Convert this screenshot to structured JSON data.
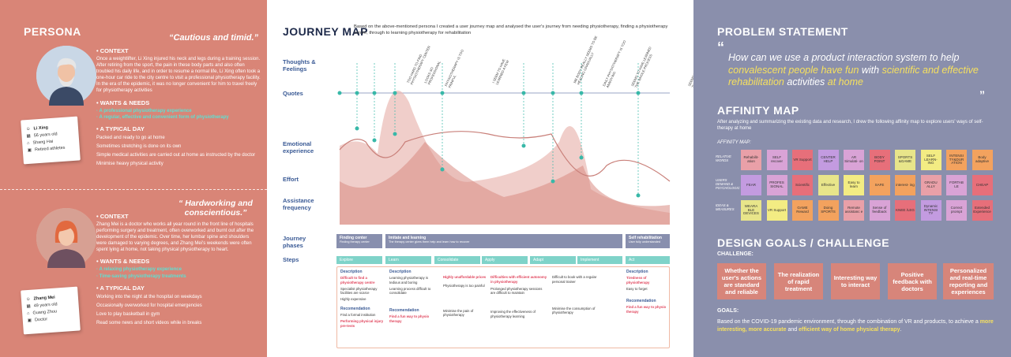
{
  "persona": {
    "title": "PERSONA",
    "p1": {
      "quote": "“Cautious and timid.”",
      "context_h": "CONTEXT",
      "context": "Once a weightlifter, Li Xing injured his neck and legs during a training session. After retiring from the sport, the pain in these body parts and also often troubled his daily life, and in order to resume a normal life, Li Xing often took a one-hour car ride to the city centre to visit a professional physiotherapy facility. In the era of the epidemic, it was no longer convenient for him to travel freely for physiotherapy activities",
      "wants_h": "WANTS & NEEDS",
      "wants": [
        "· A professional physiotherapy experience",
        "· A regular, effective and convenient form of physiotherapy"
      ],
      "day_h": "A TYPICAL DAY",
      "day": [
        "Packed and ready to go at home",
        "Sometimes stretching is done on its own",
        "Simple medical activities are carried out at home as instructed by the doctor",
        "Minimise heavy physical activity"
      ],
      "name": "Li Xing",
      "age": "56 years old",
      "city": "Shang Hai",
      "job": "Retired athletes"
    },
    "p2": {
      "quote": "“ Hardworking and conscientious.”",
      "context_h": "CONTEXT",
      "context": "Zhang Mei is a doctor who works all year round in the front line of hospitals performing surgery and treatment, often overworked and burnt out after the development of the epidemic. Over time, her lumbar spine and shoulders were damaged to varying degrees, and Zhang Mei's weekends were often spent lying at home, not taking physical physiotherapy to heart.",
      "wants_h": "WANTS & NEEDS",
      "wants": [
        "· A relaxing physiotherapy experience",
        "· Time-saving physiotherapy treatments"
      ],
      "day_h": "A TYPICAL DAY",
      "day": [
        "Working into the night at the hospital on weekdays",
        "Occasionally overworked for hospital emergencies",
        "Love to play basketball in gym",
        "Read some news and short videos while in breaks"
      ],
      "name": "Zhang Mei",
      "age": "49 years old",
      "city": "Guang Zhou",
      "job": "Doctor"
    }
  },
  "journey": {
    "title": "JOURNEY MAP",
    "intro": "Based on the above-mentioned persona I created a user journey map and analysed the user's journey from needing physiotherapy, finding a physiotherapy centre, through to learning physiotherapy for rehabilitation",
    "rows": [
      "Thoughts & Feelings",
      "Quotes",
      "Emotional experience",
      "Effort",
      "Assistance frequency",
      "Journey phases",
      "Steps"
    ],
    "thoughts": [
      "TOO HARD TO FIND PHYSIOTHERAPY CENTER",
      "LOOKS SO PROFESSIONAL",
      "PHYSIOTHERAPY IS TOO PAINFUL",
      "I SEEM TO HAVE LEARNED A FEW",
      "ME BODY REALLY SEEMS TO BE HEALING GRADUALLY",
      "DAILY PHYSIOTHERAPY IS TOO ANNOYING",
      "SEEMS TO HAVE LEARNED THE WHOLE PROCESS",
      "SEEMS TO HAVE LEARNED THE WHOLE PROCESS"
    ],
    "phases": [
      {
        "title": "Finding center",
        "sub": "Finding therapy center"
      },
      {
        "title": "Imitate and learning",
        "sub": "The therapy center gives them help and learn how to recover"
      },
      {
        "title": "Self rehabilitation",
        "sub": "User fully understanded"
      }
    ],
    "steps": [
      "Explore",
      "Learn",
      "Consolidate",
      "Apply",
      "Adapt",
      "Implement",
      "Act"
    ],
    "desc_h": "Description",
    "rec_h": "Recomendation",
    "desc": [
      [
        "Difficult to find a physiotherapy centre",
        "Specialist physiotherapy facilities are scarce",
        "Highly expensive"
      ],
      [
        "Learning physiotherapy is tedious and boring",
        "Learning process difficult to consolidate"
      ],
      [
        "Highly unaffordable prices",
        "Physiotherapy is too painful"
      ],
      [
        "Difficulties with efficient autonomy in physiotherapy",
        "Prolonged physiotherapy sessions are difficult to maintain"
      ],
      [
        "Difficult to book with a regular personal trainer"
      ],
      [
        "Tiredness of physiotherapy",
        "Easy to forget"
      ]
    ],
    "rec": [
      [
        "Find a formal institution",
        "Performing physical injury pre-tests"
      ],
      [
        "Find a fun way to physio therapy"
      ],
      [
        "Minimise the pain of physiotherapy"
      ],
      [
        "Improving the effectiveness of physiotherapy learning"
      ],
      [
        "Minimise the consumption of physiotherapy"
      ],
      [
        "Find a fun way to physio therapy"
      ]
    ]
  },
  "problem": {
    "title": "PROBLEM STATEMENT",
    "q_open": "“",
    "q_close": "”",
    "s1": "How can we use a product interaction system to help ",
    "s2": "convalescent people have fun",
    "s3": " with ",
    "s4": "scientific and effective rehabilitation",
    "s5": " activities ",
    "s6": "at home"
  },
  "affinity": {
    "title": "AFFINITY MAP",
    "intro": "After analyzing and summarizing the existing data and research, I drew the following affinity map to explore users' ways of self-therapy at home",
    "label": "AFFINITY MAP:",
    "row_labels": [
      "RELATIVE WORDS",
      "USERS DEMAND & PSYCHOLOGIC",
      "IDEAS & MEASURES"
    ],
    "rows": [
      [
        "Rehabilit- ation",
        "SELF recover",
        "VR Support",
        "CENTER HELP",
        "AR Simulati- on",
        "BODY POINT",
        "SPORTS &GAME",
        "SELF LEARN- ING",
        "INTENSI TY&DUR ATION",
        "Body adaptive"
      ],
      [
        "FEAR",
        "PROFES SIONAL",
        "Scientific",
        "Effective",
        "Easy to learn",
        "SAFE",
        "interest- ing",
        "GRADU ALLY",
        "FORTAB LE",
        "CHEAP"
      ],
      [
        "WEARA BLE DEVICES",
        "VR Support",
        "GAME Reward",
        "Doing SPORTS",
        "Remote assistanc e",
        "Sense of feedback",
        "KNEE /LEG",
        "Dynamic INTENSI TY",
        "Correct prompt",
        "Extended Experience"
      ]
    ]
  },
  "goals": {
    "title": "DESIGN GOALS / CHALLENGE",
    "challenge_h": "CHALLENGE:",
    "challenges": [
      "Whether the user's actions are standard and reliable",
      "The realization of rapid treatment",
      "Interesting way to interact",
      "Positive feedback with doctors",
      "Personalized and real-time reporting and experiences"
    ],
    "goals_h": "GOALS:",
    "g1": "Based on the COVID-19 pandemic environment, through the combination of VR and products, to achieve a ",
    "g2": "more interesting, more accurate",
    "g3": " and ",
    "g4": "efficient way of home physical therapy",
    "g5": "."
  }
}
